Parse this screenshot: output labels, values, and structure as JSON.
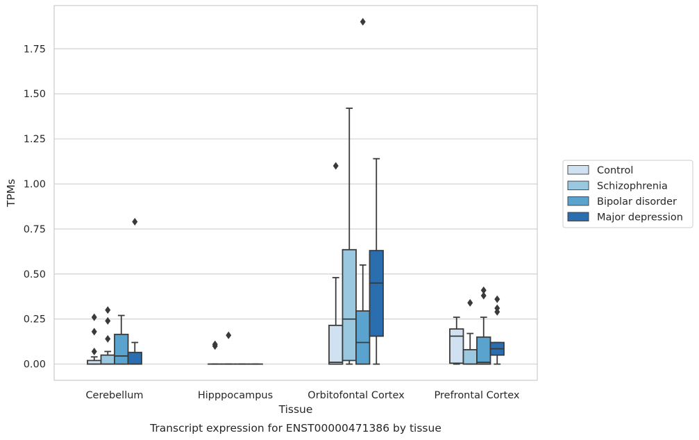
{
  "caption": "Transcript expression for ENST00000471386 by tissue",
  "chart_data": {
    "type": "box",
    "xlabel": "Tissue",
    "ylabel": "TPMs",
    "ylim": [
      -0.09,
      1.99
    ],
    "yticks": [
      0.0,
      0.25,
      0.5,
      0.75,
      1.0,
      1.25,
      1.5,
      1.75
    ],
    "ytick_labels": [
      "0.00",
      "0.25",
      "0.50",
      "0.75",
      "1.00",
      "1.25",
      "1.50",
      "1.75"
    ],
    "grid": true,
    "legend_position": "center-right outside",
    "categories": [
      "Cerebellum",
      "Hipppocampus",
      "Orbitofontal Cortex",
      "Prefrontal Cortex"
    ],
    "series": [
      {
        "name": "Control",
        "color": "#d0e1f2",
        "boxes": [
          {
            "whislo": 0.0,
            "q1": 0.0,
            "med": 0.0,
            "q3": 0.02,
            "whishi": 0.04,
            "fliers": [
              0.07,
              0.18,
              0.26
            ]
          },
          {
            "whislo": 0.0,
            "q1": 0.0,
            "med": 0.0,
            "q3": 0.0,
            "whishi": 0.0,
            "fliers": [
              0.1,
              0.11
            ]
          },
          {
            "whislo": 0.0,
            "q1": 0.0,
            "med": 0.01,
            "q3": 0.215,
            "whishi": 0.48,
            "fliers": [
              1.1
            ]
          },
          {
            "whislo": 0.0,
            "q1": 0.005,
            "med": 0.155,
            "q3": 0.195,
            "whishi": 0.26,
            "fliers": []
          }
        ]
      },
      {
        "name": "Schizophrenia",
        "color": "#9ac8e0",
        "boxes": [
          {
            "whislo": 0.0,
            "q1": 0.0,
            "med": 0.0,
            "q3": 0.05,
            "whishi": 0.07,
            "fliers": [
              0.14,
              0.24,
              0.3
            ]
          },
          {
            "whislo": 0.0,
            "q1": 0.0,
            "med": 0.0,
            "q3": 0.0,
            "whishi": 0.0,
            "fliers": [
              0.16
            ]
          },
          {
            "whislo": 0.0,
            "q1": 0.02,
            "med": 0.25,
            "q3": 0.635,
            "whishi": 1.42,
            "fliers": []
          },
          {
            "whislo": 0.0,
            "q1": 0.0,
            "med": 0.0,
            "q3": 0.08,
            "whishi": 0.17,
            "fliers": [
              0.34
            ]
          }
        ]
      },
      {
        "name": "Bipolar disorder",
        "color": "#5ba3cf",
        "boxes": [
          {
            "whislo": 0.0,
            "q1": 0.0,
            "med": 0.045,
            "q3": 0.165,
            "whishi": 0.27,
            "fliers": []
          },
          {
            "whislo": 0.0,
            "q1": 0.0,
            "med": 0.0,
            "q3": 0.0,
            "whishi": 0.0,
            "fliers": []
          },
          {
            "whislo": 0.0,
            "q1": 0.0,
            "med": 0.12,
            "q3": 0.295,
            "whishi": 0.55,
            "fliers": [
              1.9
            ]
          },
          {
            "whislo": 0.0,
            "q1": 0.0,
            "med": 0.01,
            "q3": 0.15,
            "whishi": 0.26,
            "fliers": [
              0.38,
              0.41
            ]
          }
        ]
      },
      {
        "name": "Major depression",
        "color": "#2a6eb0",
        "boxes": [
          {
            "whislo": 0.0,
            "q1": 0.0,
            "med": 0.0,
            "q3": 0.065,
            "whishi": 0.12,
            "fliers": [
              0.79
            ]
          },
          {
            "whislo": 0.0,
            "q1": 0.0,
            "med": 0.0,
            "q3": 0.0,
            "whishi": 0.0,
            "fliers": []
          },
          {
            "whislo": 0.0,
            "q1": 0.155,
            "med": 0.45,
            "q3": 0.63,
            "whishi": 1.14,
            "fliers": []
          },
          {
            "whislo": 0.0,
            "q1": 0.05,
            "med": 0.085,
            "q3": 0.12,
            "whishi": 0.12,
            "fliers": [
              0.29,
              0.31,
              0.36
            ]
          }
        ]
      }
    ]
  }
}
